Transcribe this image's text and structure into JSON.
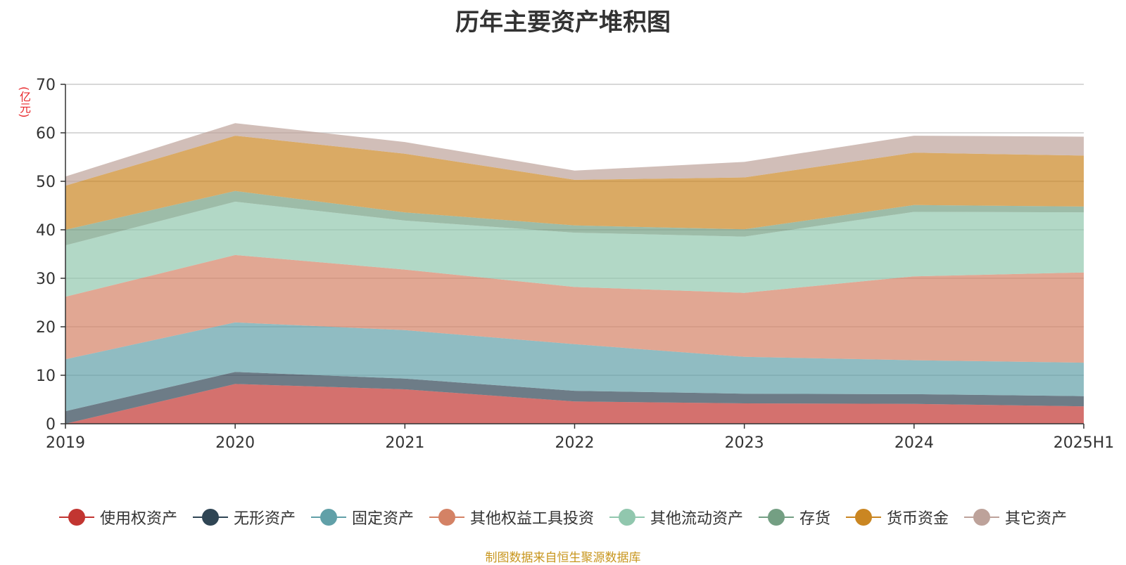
{
  "chart_data": {
    "type": "area",
    "stacked": true,
    "title": "历年主要资产堆积图",
    "ylabel": "(亿元)",
    "xlabel": "",
    "categories": [
      "2019",
      "2020",
      "2021",
      "2022",
      "2023",
      "2024",
      "2025H1"
    ],
    "ylim": [
      0,
      70
    ],
    "yticks": [
      0,
      10,
      20,
      30,
      40,
      50,
      60,
      70
    ],
    "grid": true,
    "legend_position": "bottom",
    "series": [
      {
        "name": "使用权资产",
        "color": "#c23531",
        "values": [
          0.0,
          8.2,
          7.1,
          4.6,
          4.2,
          4.1,
          3.6
        ]
      },
      {
        "name": "无形资产",
        "color": "#2f4554",
        "values": [
          2.6,
          2.5,
          2.2,
          2.2,
          2.0,
          2.0,
          2.1
        ]
      },
      {
        "name": "固定资产",
        "color": "#61a0a8",
        "values": [
          10.7,
          10.2,
          10.0,
          9.6,
          7.6,
          7.0,
          6.9
        ]
      },
      {
        "name": "其他权益工具投资",
        "color": "#d48265",
        "values": [
          12.9,
          13.9,
          12.5,
          11.8,
          13.2,
          17.3,
          18.6
        ]
      },
      {
        "name": "其他流动资产",
        "color": "#91c7ae",
        "values": [
          10.6,
          11.0,
          10.1,
          11.2,
          11.6,
          13.3,
          12.4
        ]
      },
      {
        "name": "存货",
        "color": "#749f83",
        "values": [
          3.2,
          2.2,
          1.7,
          1.5,
          1.5,
          1.4,
          1.2
        ]
      },
      {
        "name": "货币资金",
        "color": "#ca8622",
        "values": [
          9.1,
          11.4,
          12.1,
          9.4,
          10.7,
          10.8,
          10.5
        ]
      },
      {
        "name": "其它资产",
        "color": "#bda29a",
        "values": [
          1.9,
          2.6,
          2.4,
          1.9,
          3.2,
          3.5,
          3.9
        ]
      }
    ]
  },
  "source_note": "制图数据来自恒生聚源数据库"
}
